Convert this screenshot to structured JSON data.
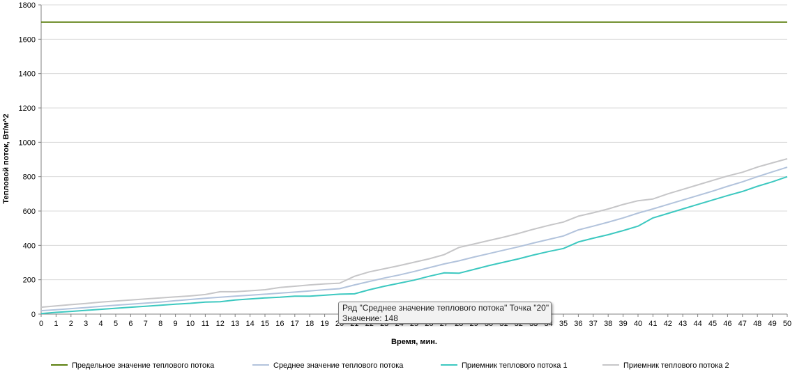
{
  "chart_data": {
    "type": "line",
    "title": "",
    "xlabel": "Время, мин.",
    "ylabel": "Тепловой поток, Вт/м^2",
    "xlim": [
      0,
      50
    ],
    "ylim": [
      0,
      1800
    ],
    "yticks": [
      0,
      200,
      400,
      600,
      800,
      1000,
      1200,
      1400,
      1600,
      1800
    ],
    "grid": true,
    "legend_position": "bottom",
    "x": [
      0,
      1,
      2,
      3,
      4,
      5,
      6,
      7,
      8,
      9,
      10,
      11,
      12,
      13,
      14,
      15,
      16,
      17,
      18,
      19,
      20,
      21,
      22,
      23,
      24,
      25,
      26,
      27,
      28,
      29,
      30,
      31,
      32,
      33,
      34,
      35,
      36,
      37,
      38,
      39,
      40,
      41,
      42,
      43,
      44,
      45,
      46,
      47,
      48,
      49,
      50
    ],
    "series": [
      {
        "name": "Предельное значение теплового потока",
        "color": "#5b7f0e",
        "values": [
          1700,
          1700,
          1700,
          1700,
          1700,
          1700,
          1700,
          1700,
          1700,
          1700,
          1700,
          1700,
          1700,
          1700,
          1700,
          1700,
          1700,
          1700,
          1700,
          1700,
          1700,
          1700,
          1700,
          1700,
          1700,
          1700,
          1700,
          1700,
          1700,
          1700,
          1700,
          1700,
          1700,
          1700,
          1700,
          1700,
          1700,
          1700,
          1700,
          1700,
          1700,
          1700,
          1700,
          1700,
          1700,
          1700,
          1700,
          1700,
          1700,
          1700,
          1700
        ]
      },
      {
        "name": "Среднее значение теплового потока",
        "color": "#b2c3dc",
        "values": [
          20,
          25,
          32,
          38,
          45,
          52,
          58,
          64,
          70,
          78,
          85,
          92,
          98,
          104,
          110,
          116,
          122,
          128,
          135,
          142,
          148,
          170,
          190,
          210,
          228,
          248,
          270,
          292,
          310,
          332,
          352,
          372,
          392,
          414,
          434,
          455,
          490,
          512,
          535,
          560,
          588,
          612,
          638,
          664,
          690,
          716,
          744,
          770,
          800,
          828,
          855
        ]
      },
      {
        "name": "Приемник теплового потока 1",
        "color": "#3cc8c0",
        "values": [
          3,
          10,
          16,
          22,
          28,
          34,
          40,
          46,
          52,
          58,
          63,
          70,
          72,
          82,
          88,
          94,
          98,
          104,
          104,
          110,
          116,
          118,
          142,
          162,
          180,
          198,
          220,
          240,
          238,
          260,
          282,
          302,
          322,
          344,
          364,
          382,
          420,
          442,
          462,
          486,
          512,
          560,
          586,
          612,
          638,
          664,
          690,
          714,
          744,
          770,
          800
        ]
      },
      {
        "name": "Приемник теплового потока 2",
        "color": "#c6c6c8",
        "values": [
          40,
          48,
          55,
          62,
          70,
          76,
          82,
          88,
          94,
          100,
          106,
          114,
          130,
          130,
          136,
          142,
          155,
          162,
          170,
          176,
          180,
          220,
          246,
          264,
          282,
          302,
          322,
          346,
          388,
          408,
          428,
          448,
          470,
          494,
          516,
          536,
          570,
          590,
          612,
          638,
          660,
          670,
          700,
          726,
          752,
          778,
          804,
          826,
          856,
          880,
          904
        ]
      }
    ],
    "tooltip": {
      "line1": "Ряд \"Среднее значение теплового потока\" Точка \"20\"",
      "line2": "Значение: 148"
    }
  }
}
